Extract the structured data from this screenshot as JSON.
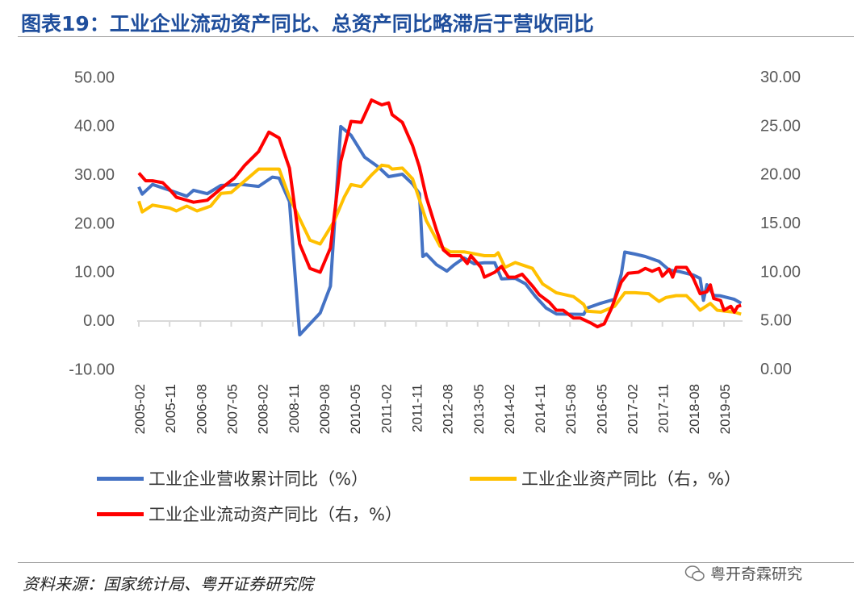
{
  "title": "图表19：工业企业流动资产同比、总资产同比略滞后于营收同比",
  "source": "资料来源：国家统计局、粤开证券研究院",
  "watermark": "粤开奇霖研究",
  "colors": {
    "revenue": "#4472c4",
    "assets": "#ffc000",
    "current_assets": "#ff0000",
    "title": "#1f4e9c"
  },
  "chart_data": {
    "type": "line",
    "title": "图表19：工业企业流动资产同比、总资产同比略滞后于营收同比",
    "left_axis": {
      "range": [
        -10,
        50
      ],
      "ticks": [
        "50.00",
        "40.00",
        "30.00",
        "20.00",
        "10.00",
        "0.00",
        "-10.00"
      ],
      "tick_values": [
        50,
        40,
        30,
        20,
        10,
        0,
        -10
      ]
    },
    "right_axis": {
      "range": [
        0,
        30
      ],
      "ticks": [
        "30.00",
        "25.00",
        "20.00",
        "15.00",
        "10.00",
        "5.00",
        "0.00"
      ],
      "tick_values": [
        30,
        25,
        20,
        15,
        10,
        5,
        0
      ]
    },
    "x_ticks": [
      "2005-02",
      "2005-11",
      "2006-08",
      "2007-05",
      "2008-02",
      "2008-11",
      "2009-08",
      "2010-05",
      "2011-02",
      "2011-11",
      "2012-08",
      "2013-05",
      "2014-02",
      "2014-11",
      "2015-08",
      "2016-05",
      "2017-02",
      "2017-11",
      "2018-08",
      "2019-05"
    ],
    "legend_position": "bottom",
    "series": [
      {
        "name": "工业企业营收累计同比（%）",
        "axis": "left",
        "color": "#4472c4",
        "points": [
          [
            "2005-02",
            27.4
          ],
          [
            "2005-03",
            25.9
          ],
          [
            "2005-06",
            27.9
          ],
          [
            "2005-11",
            26.7
          ],
          [
            "2006-04",
            25.5
          ],
          [
            "2006-06",
            26.7
          ],
          [
            "2006-10",
            26.0
          ],
          [
            "2007-02",
            27.7
          ],
          [
            "2007-08",
            27.9
          ],
          [
            "2008-01",
            27.5
          ],
          [
            "2008-05",
            29.4
          ],
          [
            "2008-07",
            29.2
          ],
          [
            "2008-10",
            24.4
          ],
          [
            "2009-01",
            -3.0
          ],
          [
            "2009-07",
            1.5
          ],
          [
            "2009-10",
            7.0
          ],
          [
            "2010-01",
            39.8
          ],
          [
            "2010-04",
            38.0
          ],
          [
            "2010-08",
            33.5
          ],
          [
            "2010-12",
            31.5
          ],
          [
            "2011-03",
            29.5
          ],
          [
            "2011-07",
            30.0
          ],
          [
            "2011-10",
            28.0
          ],
          [
            "2011-12",
            26.0
          ],
          [
            "2012-01",
            13.1
          ],
          [
            "2012-02",
            13.6
          ],
          [
            "2012-05",
            11.4
          ],
          [
            "2012-08",
            10.1
          ],
          [
            "2012-10",
            11.3
          ],
          [
            "2013-01",
            12.8
          ],
          [
            "2013-04",
            11.6
          ],
          [
            "2013-07",
            11.8
          ],
          [
            "2013-10",
            11.8
          ],
          [
            "2013-12",
            8.5
          ],
          [
            "2014-04",
            8.6
          ],
          [
            "2014-07",
            7.5
          ],
          [
            "2014-10",
            4.8
          ],
          [
            "2015-01",
            2.5
          ],
          [
            "2015-04",
            1.3
          ],
          [
            "2015-12",
            1.2
          ],
          [
            "2016-01",
            2.5
          ],
          [
            "2016-05",
            3.5
          ],
          [
            "2016-09",
            4.3
          ],
          [
            "2016-11",
            9.5
          ],
          [
            "2016-12",
            14.0
          ],
          [
            "2017-03",
            13.6
          ],
          [
            "2017-06",
            13.1
          ],
          [
            "2017-10",
            12.1
          ],
          [
            "2018-01",
            10.3
          ],
          [
            "2018-04",
            10.0
          ],
          [
            "2018-08",
            9.3
          ],
          [
            "2018-10",
            8.6
          ],
          [
            "2018-11",
            4.1
          ],
          [
            "2018-12",
            7.3
          ],
          [
            "2019-02",
            5.1
          ],
          [
            "2019-04",
            5.0
          ],
          [
            "2019-08",
            4.3
          ],
          [
            "2019-10",
            3.5
          ]
        ]
      },
      {
        "name": "工业企业资产同比（右，%）",
        "axis": "right",
        "color": "#ffc000",
        "points": [
          [
            "2005-02",
            17.2
          ],
          [
            "2005-03",
            16.1
          ],
          [
            "2005-06",
            16.8
          ],
          [
            "2005-11",
            16.5
          ],
          [
            "2006-01",
            16.2
          ],
          [
            "2006-04",
            16.7
          ],
          [
            "2006-07",
            16.2
          ],
          [
            "2006-11",
            16.7
          ],
          [
            "2007-02",
            18.0
          ],
          [
            "2007-05",
            18.1
          ],
          [
            "2007-08",
            19.0
          ],
          [
            "2008-01",
            20.5
          ],
          [
            "2008-05",
            20.5
          ],
          [
            "2008-07",
            20.5
          ],
          [
            "2008-10",
            17.6
          ],
          [
            "2009-04",
            13.2
          ],
          [
            "2009-07",
            12.8
          ],
          [
            "2009-11",
            15.1
          ],
          [
            "2010-02",
            17.6
          ],
          [
            "2010-04",
            18.9
          ],
          [
            "2010-07",
            18.7
          ],
          [
            "2010-10",
            19.9
          ],
          [
            "2011-01",
            20.9
          ],
          [
            "2011-03",
            20.8
          ],
          [
            "2011-04",
            20.5
          ],
          [
            "2011-07",
            20.6
          ],
          [
            "2011-10",
            19.5
          ],
          [
            "2012-02",
            15.2
          ],
          [
            "2012-06",
            12.6
          ],
          [
            "2012-09",
            12.0
          ],
          [
            "2013-01",
            12.0
          ],
          [
            "2013-07",
            11.6
          ],
          [
            "2013-10",
            11.6
          ],
          [
            "2013-11",
            11.9
          ],
          [
            "2014-01",
            10.4
          ],
          [
            "2014-04",
            10.9
          ],
          [
            "2014-09",
            10.3
          ],
          [
            "2014-12",
            8.7
          ],
          [
            "2015-04",
            7.8
          ],
          [
            "2015-09",
            7.4
          ],
          [
            "2015-12",
            6.6
          ],
          [
            "2016-01",
            5.9
          ],
          [
            "2016-05",
            5.8
          ],
          [
            "2016-09",
            6.4
          ],
          [
            "2016-12",
            7.8
          ],
          [
            "2017-03",
            7.8
          ],
          [
            "2017-07",
            7.7
          ],
          [
            "2017-10",
            6.9
          ],
          [
            "2017-12",
            7.3
          ],
          [
            "2018-03",
            7.5
          ],
          [
            "2018-06",
            7.5
          ],
          [
            "2018-08",
            6.8
          ],
          [
            "2018-10",
            6.0
          ],
          [
            "2019-01",
            6.7
          ],
          [
            "2019-03",
            6.0
          ],
          [
            "2019-08",
            5.8
          ],
          [
            "2019-10",
            5.6
          ]
        ]
      },
      {
        "name": "工业企业流动资产同比（右，%）",
        "axis": "right",
        "color": "#ff0000",
        "points": [
          [
            "2005-02",
            20.1
          ],
          [
            "2005-04",
            19.3
          ],
          [
            "2005-06",
            19.3
          ],
          [
            "2005-09",
            19.1
          ],
          [
            "2005-11",
            18.4
          ],
          [
            "2006-01",
            17.6
          ],
          [
            "2006-03",
            17.4
          ],
          [
            "2006-06",
            17.1
          ],
          [
            "2006-10",
            17.3
          ],
          [
            "2007-02",
            18.5
          ],
          [
            "2007-06",
            19.6
          ],
          [
            "2007-09",
            20.9
          ],
          [
            "2008-01",
            22.3
          ],
          [
            "2008-04",
            24.3
          ],
          [
            "2008-07",
            23.7
          ],
          [
            "2008-10",
            20.6
          ],
          [
            "2009-01",
            12.8
          ],
          [
            "2009-04",
            10.3
          ],
          [
            "2009-07",
            9.9
          ],
          [
            "2009-10",
            12.4
          ],
          [
            "2010-01",
            21.3
          ],
          [
            "2010-04",
            25.4
          ],
          [
            "2010-07",
            25.3
          ],
          [
            "2010-10",
            27.6
          ],
          [
            "2011-01",
            27.1
          ],
          [
            "2011-03",
            27.3
          ],
          [
            "2011-04",
            26.1
          ],
          [
            "2011-07",
            25.3
          ],
          [
            "2011-10",
            22.9
          ],
          [
            "2011-12",
            20.7
          ],
          [
            "2012-02",
            17.6
          ],
          [
            "2012-05",
            14.2
          ],
          [
            "2012-07",
            12.2
          ],
          [
            "2012-09",
            11.6
          ],
          [
            "2012-12",
            11.6
          ],
          [
            "2013-02",
            10.8
          ],
          [
            "2013-03",
            11.6
          ],
          [
            "2013-06",
            10.4
          ],
          [
            "2013-07",
            9.4
          ],
          [
            "2013-10",
            9.9
          ],
          [
            "2013-12",
            10.5
          ],
          [
            "2014-02",
            9.4
          ],
          [
            "2014-04",
            9.4
          ],
          [
            "2014-06",
            9.7
          ],
          [
            "2014-09",
            8.5
          ],
          [
            "2014-11",
            7.6
          ],
          [
            "2015-02",
            6.8
          ],
          [
            "2015-04",
            6.0
          ],
          [
            "2015-06",
            6.0
          ],
          [
            "2015-09",
            5.2
          ],
          [
            "2015-11",
            5.2
          ],
          [
            "2016-02",
            4.7
          ],
          [
            "2016-04",
            4.3
          ],
          [
            "2016-06",
            4.6
          ],
          [
            "2016-08",
            6.1
          ],
          [
            "2016-11",
            8.9
          ],
          [
            "2017-01",
            9.8
          ],
          [
            "2017-04",
            9.9
          ],
          [
            "2017-06",
            10.3
          ],
          [
            "2017-08",
            10.0
          ],
          [
            "2017-10",
            10.3
          ],
          [
            "2017-11",
            9.5
          ],
          [
            "2018-01",
            10.2
          ],
          [
            "2018-02",
            9.4
          ],
          [
            "2018-03",
            10.4
          ],
          [
            "2018-06",
            10.4
          ],
          [
            "2018-08",
            9.3
          ],
          [
            "2018-10",
            7.7
          ],
          [
            "2018-12",
            7.9
          ],
          [
            "2019-01",
            8.6
          ],
          [
            "2019-02",
            7.2
          ],
          [
            "2019-04",
            7.0
          ],
          [
            "2019-05",
            6.0
          ],
          [
            "2019-07",
            6.4
          ],
          [
            "2019-08",
            5.8
          ],
          [
            "2019-09",
            6.4
          ],
          [
            "2019-10",
            6.5
          ]
        ]
      }
    ]
  }
}
